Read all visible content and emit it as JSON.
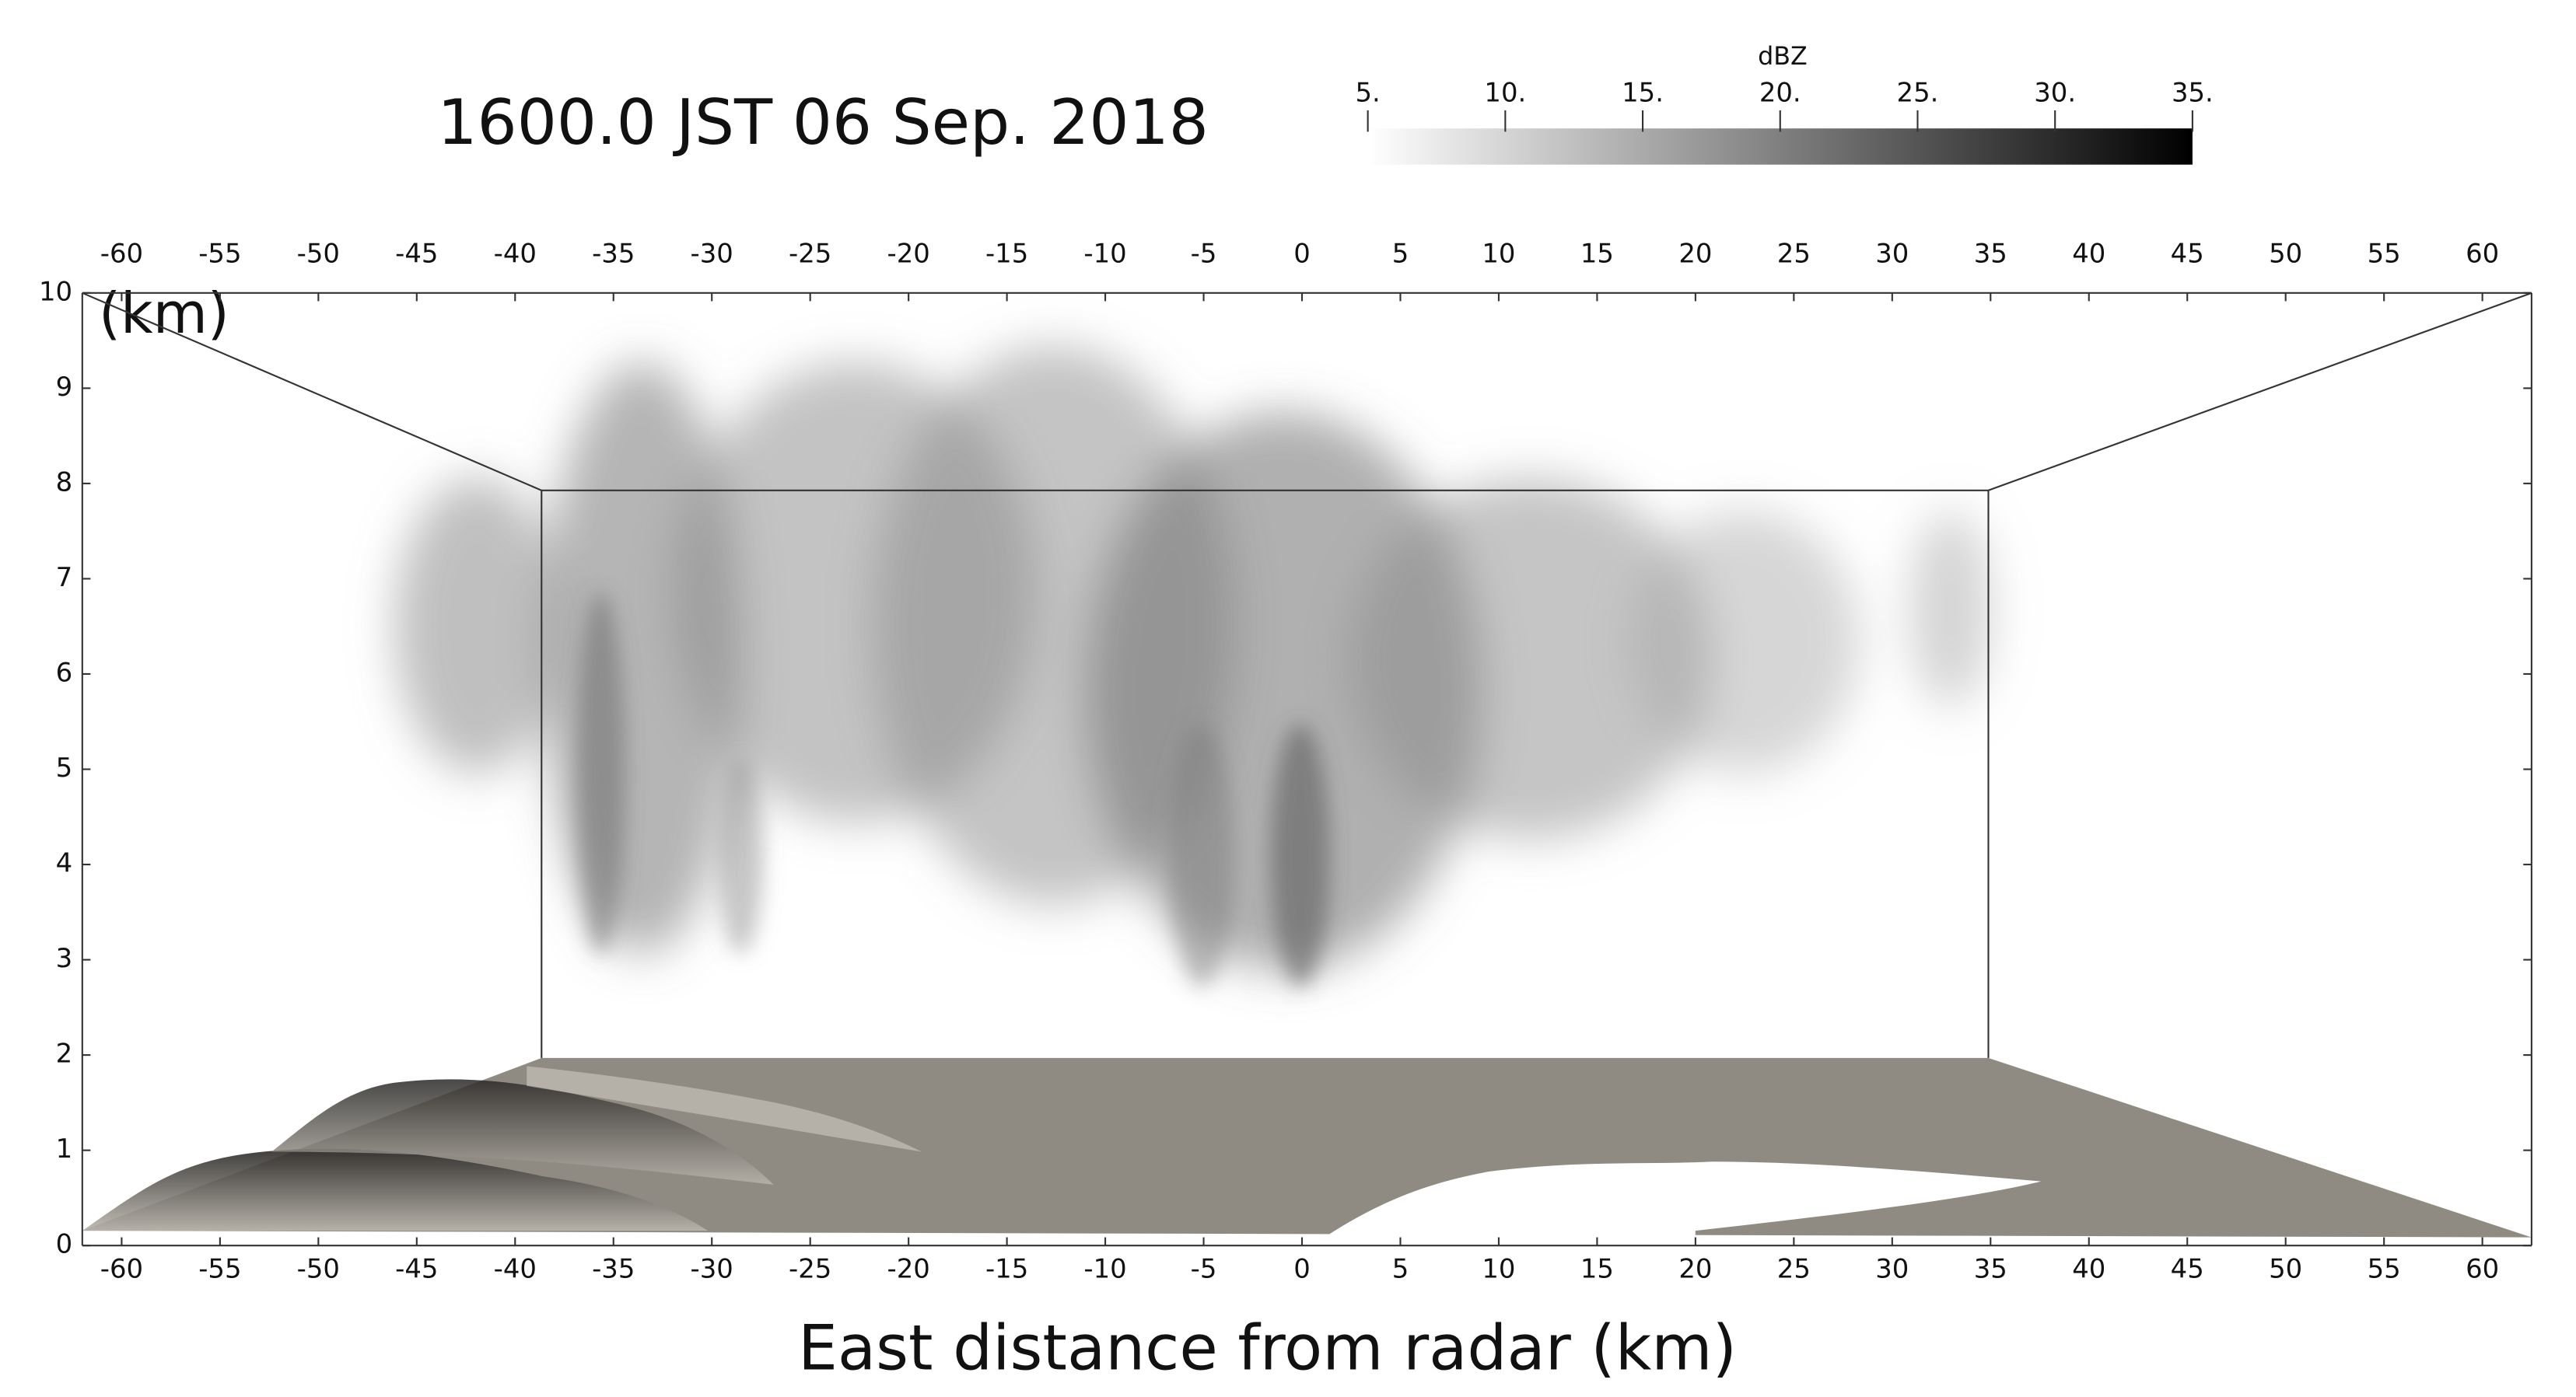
{
  "chart_data": {
    "type": "volume",
    "title": "1600.0 JST  06 Sep. 2018",
    "colorbar": {
      "label": "dBZ",
      "lim": [
        5,
        35
      ],
      "colormap": [
        "#ffffff",
        "#000000"
      ],
      "ticks": [
        {
          "value": 5,
          "label": "5."
        },
        {
          "value": 10,
          "label": "10."
        },
        {
          "value": 15,
          "label": "15."
        },
        {
          "value": 20,
          "label": "20."
        },
        {
          "value": 25,
          "label": "25."
        },
        {
          "value": 30,
          "label": "30."
        },
        {
          "value": 35,
          "label": "35."
        }
      ]
    },
    "xlabel": "East distance from radar (km)",
    "ylabel": "(km)",
    "xlim": [
      -62,
      62.5
    ],
    "xticks": [
      -60,
      -55,
      -50,
      -45,
      -40,
      -35,
      -30,
      -25,
      -20,
      -15,
      -10,
      -5,
      0,
      5,
      10,
      15,
      20,
      25,
      30,
      35,
      40,
      45,
      50,
      55,
      60
    ],
    "ylim": [
      0,
      10
    ],
    "yticks": [
      0,
      1,
      2,
      3,
      4,
      5,
      6,
      7,
      8,
      9,
      10
    ]
  }
}
